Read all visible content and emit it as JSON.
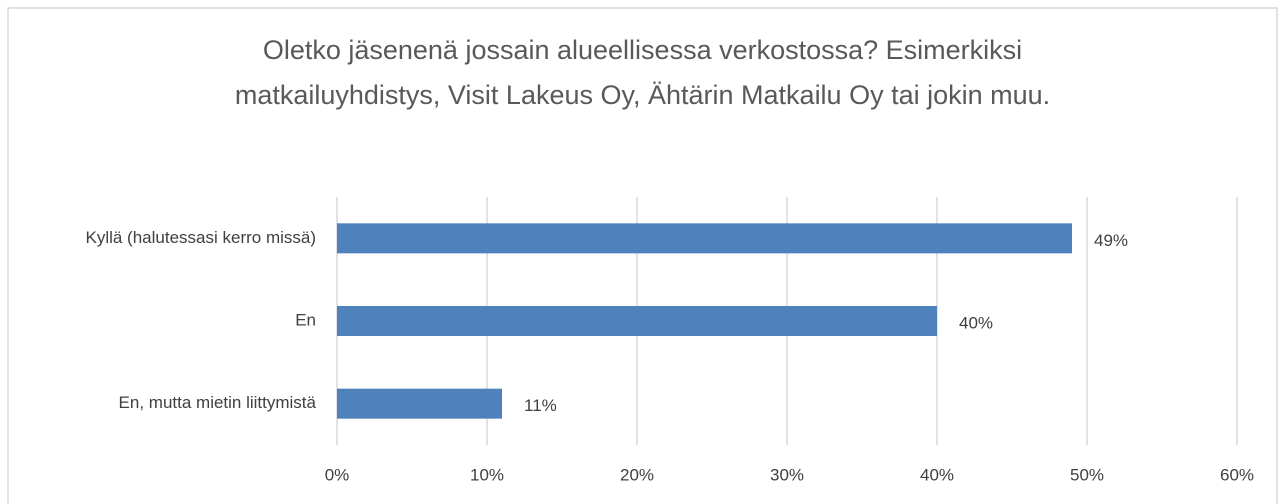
{
  "chart_data": {
    "type": "bar",
    "orientation": "horizontal",
    "title": "Oletko jäsenenä jossain alueellisessa verkostossa? Esimerkiksi matkailuyhdistys, Visit Lakeus Oy, Ähtärin Matkailu Oy tai jokin muu.",
    "categories": [
      "Kyllä (halutessasi kerro missä)",
      "En",
      "En, mutta mietin liittymistä"
    ],
    "values": [
      49,
      40,
      11
    ],
    "value_labels": [
      "49%",
      "40%",
      "11%"
    ],
    "color": "#4f81bd",
    "xlim": [
      0,
      60
    ],
    "xticks": [
      {
        "value": 0,
        "label": "0%"
      },
      {
        "value": 10,
        "label": "10%"
      },
      {
        "value": 20,
        "label": "20%"
      },
      {
        "value": 30,
        "label": "30%"
      },
      {
        "value": 40,
        "label": "40%"
      },
      {
        "value": 50,
        "label": "50%"
      },
      {
        "value": 60,
        "label": "60%"
      }
    ],
    "grid": true
  }
}
